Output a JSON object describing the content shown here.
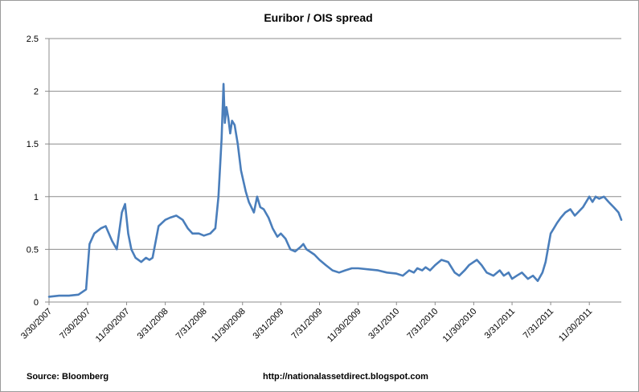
{
  "chart_data": {
    "type": "line",
    "title": "Euribor / OIS spread",
    "xlabel": "",
    "ylabel": "",
    "ylim": [
      0,
      2.5
    ],
    "y_ticks": [
      "0",
      "0.5",
      "1",
      "1.5",
      "2",
      "2.5"
    ],
    "x_ticks": [
      "3/30/2007",
      "7/30/2007",
      "11/30/2007",
      "3/31/2008",
      "7/31/2008",
      "11/30/2008",
      "3/31/2009",
      "7/31/2009",
      "11/30/2009",
      "3/31/2010",
      "7/31/2010",
      "11/30/2010",
      "3/31/2011",
      "7/31/2011",
      "11/30/2011"
    ],
    "xlim": [
      "2007-03-30",
      "2012-03-10"
    ],
    "grid": true,
    "legend": "none",
    "line_color": "#4a7ebb",
    "series": [
      {
        "x": [
          "2007-03-30",
          "2007-05-01",
          "2007-06-01",
          "2007-07-01",
          "2007-07-25",
          "2007-08-05",
          "2007-08-20",
          "2007-09-10",
          "2007-09-25",
          "2007-10-15",
          "2007-10-30",
          "2007-11-15",
          "2007-11-25",
          "2007-12-05",
          "2007-12-15",
          "2007-12-28",
          "2008-01-15",
          "2008-01-30",
          "2008-02-10",
          "2008-02-20",
          "2008-03-10",
          "2008-03-31",
          "2008-04-15",
          "2008-05-05",
          "2008-05-25",
          "2008-06-10",
          "2008-06-25",
          "2008-07-15",
          "2008-07-31",
          "2008-08-20",
          "2008-09-05",
          "2008-09-15",
          "2008-09-25",
          "2008-10-01",
          "2008-10-05",
          "2008-10-10",
          "2008-10-16",
          "2008-10-22",
          "2008-10-28",
          "2008-11-05",
          "2008-11-15",
          "2008-11-25",
          "2008-12-10",
          "2008-12-20",
          "2009-01-05",
          "2009-01-15",
          "2009-01-25",
          "2009-02-05",
          "2009-02-20",
          "2009-03-05",
          "2009-03-20",
          "2009-03-31",
          "2009-04-15",
          "2009-04-30",
          "2009-05-15",
          "2009-05-31",
          "2009-06-10",
          "2009-06-20",
          "2009-06-30",
          "2009-07-15",
          "2009-07-31",
          "2009-08-20",
          "2009-09-10",
          "2009-10-01",
          "2009-10-20",
          "2009-11-10",
          "2009-11-30",
          "2010-01-01",
          "2010-02-01",
          "2010-03-01",
          "2010-03-31",
          "2010-04-20",
          "2010-05-10",
          "2010-05-25",
          "2010-06-05",
          "2010-06-20",
          "2010-07-01",
          "2010-07-15",
          "2010-07-31",
          "2010-08-20",
          "2010-09-10",
          "2010-10-01",
          "2010-10-15",
          "2010-11-01",
          "2010-11-15",
          "2010-11-30",
          "2010-12-10",
          "2010-12-25",
          "2011-01-10",
          "2011-01-31",
          "2011-02-20",
          "2011-03-05",
          "2011-03-20",
          "2011-03-31",
          "2011-04-15",
          "2011-05-01",
          "2011-05-20",
          "2011-06-05",
          "2011-06-20",
          "2011-07-05",
          "2011-07-15",
          "2011-07-31",
          "2011-08-10",
          "2011-08-20",
          "2011-09-01",
          "2011-09-15",
          "2011-10-01",
          "2011-10-15",
          "2011-10-25",
          "2011-11-10",
          "2011-11-30",
          "2011-12-10",
          "2011-12-20",
          "2011-12-31",
          "2012-01-15",
          "2012-01-30",
          "2012-02-15",
          "2012-03-01",
          "2012-03-10"
        ],
        "values": [
          0.05,
          0.06,
          0.06,
          0.07,
          0.12,
          0.55,
          0.65,
          0.7,
          0.72,
          0.58,
          0.5,
          0.85,
          0.93,
          0.65,
          0.5,
          0.42,
          0.38,
          0.42,
          0.4,
          0.42,
          0.72,
          0.78,
          0.8,
          0.82,
          0.78,
          0.7,
          0.65,
          0.65,
          0.63,
          0.65,
          0.7,
          1.0,
          1.55,
          2.07,
          1.7,
          1.85,
          1.75,
          1.6,
          1.72,
          1.68,
          1.5,
          1.25,
          1.05,
          0.95,
          0.85,
          1.0,
          0.9,
          0.88,
          0.8,
          0.7,
          0.62,
          0.65,
          0.6,
          0.5,
          0.48,
          0.52,
          0.55,
          0.5,
          0.48,
          0.45,
          0.4,
          0.35,
          0.3,
          0.28,
          0.3,
          0.32,
          0.32,
          0.31,
          0.3,
          0.28,
          0.27,
          0.25,
          0.3,
          0.28,
          0.32,
          0.3,
          0.33,
          0.3,
          0.35,
          0.4,
          0.38,
          0.28,
          0.25,
          0.3,
          0.35,
          0.38,
          0.4,
          0.35,
          0.28,
          0.25,
          0.3,
          0.25,
          0.28,
          0.22,
          0.25,
          0.28,
          0.22,
          0.25,
          0.2,
          0.28,
          0.38,
          0.65,
          0.7,
          0.75,
          0.8,
          0.85,
          0.88,
          0.82,
          0.85,
          0.9,
          1.0,
          0.95,
          1.0,
          0.98,
          1.0,
          0.95,
          0.9,
          0.85,
          0.78
        ]
      }
    ]
  },
  "footer": {
    "source": "Source:  Bloomberg",
    "url": "http://nationalassetdirect.blogspot.com"
  }
}
